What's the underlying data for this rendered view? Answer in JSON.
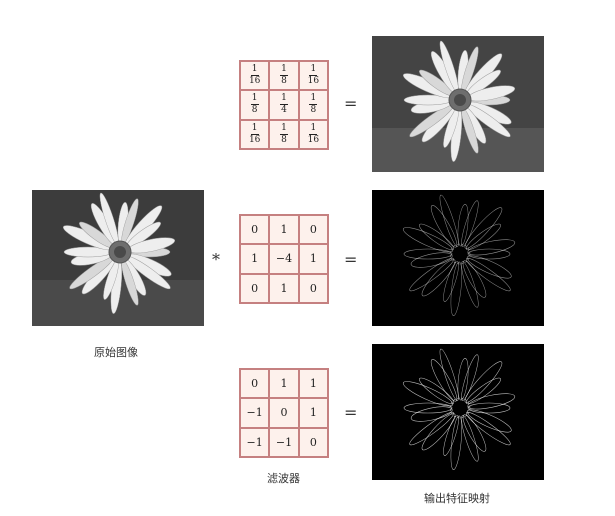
{
  "caption_original": "原始图像",
  "caption_filter": "滤波器",
  "caption_output": "输出特征映射",
  "operator_conv": "*",
  "operator_eq": "=",
  "kernel_blur": [
    [
      {
        "n": "1",
        "d": "16"
      },
      {
        "n": "1",
        "d": "8"
      },
      {
        "n": "1",
        "d": "16"
      }
    ],
    [
      {
        "n": "1",
        "d": "8"
      },
      {
        "n": "1",
        "d": "4"
      },
      {
        "n": "1",
        "d": "8"
      }
    ],
    [
      {
        "n": "1",
        "d": "16"
      },
      {
        "n": "1",
        "d": "8"
      },
      {
        "n": "1",
        "d": "16"
      }
    ]
  ],
  "kernel_laplace": [
    [
      "0",
      "1",
      "0"
    ],
    [
      "1",
      "−4",
      "1"
    ],
    [
      "0",
      "1",
      "0"
    ]
  ],
  "kernel_diag": [
    [
      "0",
      "1",
      "1"
    ],
    [
      "−1",
      "0",
      "1"
    ],
    [
      "−1",
      "−1",
      "0"
    ]
  ]
}
